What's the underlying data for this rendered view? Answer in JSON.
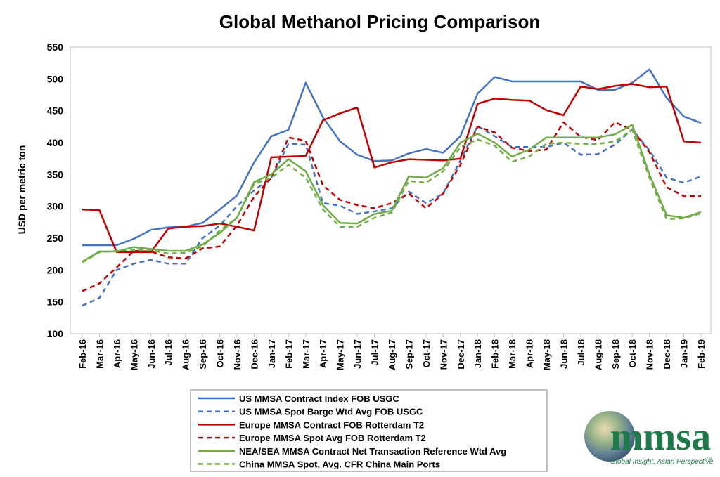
{
  "chart_data": {
    "type": "line",
    "title": "Global Methanol Pricing Comparison",
    "ylabel": "USD per metric ton",
    "xlabel": "",
    "ylim": [
      100,
      550
    ],
    "yticks": [
      100,
      150,
      200,
      250,
      300,
      350,
      400,
      450,
      500,
      550
    ],
    "grid": false,
    "legend_position": "bottom-center",
    "categories": [
      "Feb-16",
      "Mar-16",
      "Apr-16",
      "May-16",
      "Jun-16",
      "Jul-16",
      "Aug-16",
      "Sep-16",
      "Oct-16",
      "Nov-16",
      "Dec-16",
      "Jan-17",
      "Feb-17",
      "Mar-17",
      "Apr-17",
      "May-17",
      "Jun-17",
      "Jul-17",
      "Aug-17",
      "Sep-17",
      "Oct-17",
      "Nov-17",
      "Dec-17",
      "Jan-18",
      "Feb-18",
      "Mar-18",
      "Apr-18",
      "May-18",
      "Jun-18",
      "Jul-18",
      "Aug-18",
      "Sep-18",
      "Oct-18",
      "Nov-18",
      "Dec-18",
      "Jan-19",
      "Feb-19"
    ],
    "series": [
      {
        "name": "US MMSA Contract Index FOB USGC",
        "color": "#4472c4",
        "dash": "solid",
        "values": [
          239,
          239,
          239,
          249,
          263,
          267,
          268,
          274,
          295,
          317,
          369,
          410,
          420,
          494,
          440,
          402,
          381,
          371,
          372,
          383,
          390,
          384,
          410,
          477,
          503,
          496,
          496,
          496,
          496,
          496,
          483,
          483,
          494,
          515,
          470,
          441,
          431
        ]
      },
      {
        "name": "US MMSA Spot Barge Wtd Avg FOB USGC",
        "color": "#4472c4",
        "dash": "dashed",
        "values": [
          144,
          156,
          200,
          210,
          216,
          210,
          210,
          250,
          270,
          300,
          325,
          345,
          398,
          397,
          305,
          301,
          288,
          292,
          297,
          323,
          305,
          320,
          372,
          426,
          410,
          393,
          393,
          393,
          400,
          381,
          382,
          397,
          421,
          388,
          345,
          337,
          347
        ]
      },
      {
        "name": "Europe MMSA Contract FOB Rotterdam T2",
        "color": "#c00000",
        "dash": "solid",
        "values": [
          295,
          294,
          228,
          228,
          228,
          265,
          268,
          269,
          273,
          268,
          262,
          377,
          378,
          379,
          435,
          446,
          455,
          361,
          369,
          374,
          373,
          372,
          375,
          461,
          469,
          467,
          466,
          451,
          443,
          488,
          484,
          489,
          492,
          487,
          488,
          402,
          400
        ]
      },
      {
        "name": "Europe MMSA Spot Avg FOB Rotterdam T2",
        "color": "#c00000",
        "dash": "dashed",
        "values": [
          167,
          179,
          204,
          230,
          229,
          220,
          218,
          234,
          237,
          270,
          315,
          345,
          408,
          403,
          333,
          310,
          302,
          297,
          305,
          320,
          297,
          320,
          365,
          425,
          416,
          392,
          387,
          389,
          432,
          409,
          404,
          432,
          420,
          385,
          330,
          316,
          316
        ]
      },
      {
        "name": "NEA/SEA MMSA Contract Net Transaction Reference Wtd Avg",
        "color": "#70ad47",
        "dash": "solid",
        "values": [
          213,
          229,
          229,
          236,
          233,
          230,
          230,
          240,
          258,
          282,
          338,
          350,
          374,
          355,
          302,
          274,
          273,
          288,
          293,
          347,
          345,
          360,
          400,
          414,
          400,
          378,
          389,
          408,
          408,
          408,
          408,
          413,
          428,
          350,
          286,
          282,
          291
        ]
      },
      {
        "name": "China MMSA Spot, Avg. CFR China Main Ports",
        "color": "#70ad47",
        "dash": "dashed",
        "values": [
          212,
          228,
          230,
          231,
          231,
          226,
          227,
          237,
          262,
          282,
          335,
          345,
          365,
          345,
          295,
          268,
          268,
          282,
          290,
          340,
          337,
          355,
          393,
          405,
          395,
          370,
          378,
          398,
          400,
          398,
          398,
          402,
          420,
          345,
          280,
          281,
          289
        ]
      }
    ]
  },
  "logo": {
    "brand": "mmsa",
    "tagline": "Global Insight, Asian Perspective",
    "trademark": "TM"
  }
}
